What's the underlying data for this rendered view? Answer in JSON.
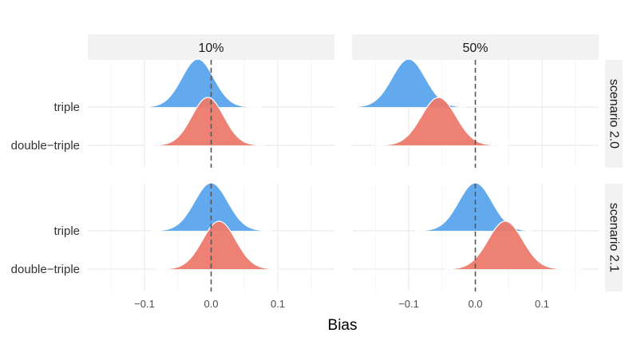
{
  "chart_data": {
    "type": "ridgeline",
    "xlabel": "Bias",
    "xlim": [
      -0.185,
      0.185
    ],
    "x_ticks": [
      -0.1,
      0.0,
      0.1
    ],
    "x_tick_labels": [
      "−0.1",
      "0.0",
      "0.1"
    ],
    "reference_line": 0,
    "columns": [
      "10%",
      "50%"
    ],
    "rows": [
      "scenario 2.0",
      "scenario 2.1"
    ],
    "categories": [
      "triple",
      "double−triple"
    ],
    "colors": {
      "triple": "#5aa5ec",
      "double-triple": "#ec7a6d"
    },
    "panels": [
      {
        "row": "scenario 2.0",
        "column": "10%",
        "series": [
          {
            "name": "triple",
            "mean": -0.02,
            "sd": 0.024,
            "range": [
              -0.1,
              0.075
            ]
          },
          {
            "name": "double−triple",
            "mean": -0.005,
            "sd": 0.024,
            "range": [
              -0.1,
              0.08
            ]
          }
        ]
      },
      {
        "row": "scenario 2.0",
        "column": "50%",
        "series": [
          {
            "name": "triple",
            "mean": -0.1,
            "sd": 0.025,
            "range": [
              -0.185,
              -0.015
            ]
          },
          {
            "name": "double−triple",
            "mean": -0.055,
            "sd": 0.026,
            "range": [
              -0.15,
              0.05
            ]
          }
        ]
      },
      {
        "row": "scenario 2.1",
        "column": "10%",
        "series": [
          {
            "name": "triple",
            "mean": 0.0,
            "sd": 0.025,
            "range": [
              -0.09,
              0.09
            ]
          },
          {
            "name": "double−triple",
            "mean": 0.012,
            "sd": 0.025,
            "range": [
              -0.085,
              0.1
            ]
          }
        ]
      },
      {
        "row": "scenario 2.1",
        "column": "50%",
        "series": [
          {
            "name": "triple",
            "mean": 0.0,
            "sd": 0.025,
            "range": [
              -0.09,
              0.085
            ]
          },
          {
            "name": "double−triple",
            "mean": 0.045,
            "sd": 0.026,
            "range": [
              -0.045,
              0.16
            ]
          }
        ]
      }
    ]
  }
}
